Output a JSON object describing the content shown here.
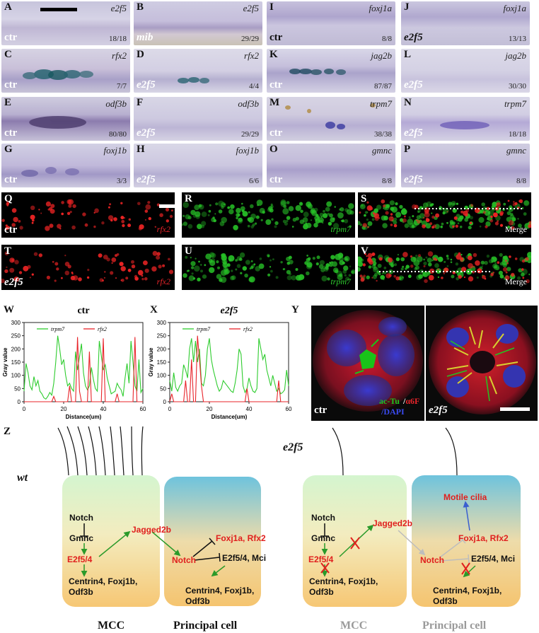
{
  "figure": {
    "panel_letters": {
      "A": "A",
      "B": "B",
      "C": "C",
      "D": "D",
      "E": "E",
      "F": "F",
      "G": "G",
      "H": "H",
      "I": "I",
      "J": "J",
      "K": "K",
      "L": "L",
      "M": "M",
      "N": "N",
      "O": "O",
      "P": "P",
      "Q": "Q",
      "R": "R",
      "S": "S",
      "T": "T",
      "U": "U",
      "V": "V",
      "W": "W",
      "X": "X",
      "Y": "Y",
      "Z": "Z"
    },
    "ish": {
      "A": {
        "gene": "e2f5",
        "cond": "ctr",
        "ratio": "18/18"
      },
      "B": {
        "gene": "e2f5",
        "cond": "mib",
        "ratio": "29/29"
      },
      "C": {
        "gene": "rfx2",
        "cond": "ctr",
        "ratio": "7/7"
      },
      "D": {
        "gene": "rfx2",
        "cond": "e2f5",
        "ratio": "4/4"
      },
      "E": {
        "gene": "odf3b",
        "cond": "ctr",
        "ratio": "80/80"
      },
      "F": {
        "gene": "odf3b",
        "cond": "e2f5",
        "ratio": "29/29"
      },
      "G": {
        "gene": "foxj1b",
        "cond": "ctr",
        "ratio": "3/3"
      },
      "H": {
        "gene": "foxj1b",
        "cond": "e2f5",
        "ratio": "6/6"
      },
      "I": {
        "gene": "foxj1a",
        "cond": "ctr",
        "ratio": "8/8"
      },
      "J": {
        "gene": "foxj1a",
        "cond": "e2f5",
        "ratio": "13/13"
      },
      "K": {
        "gene": "jag2b",
        "cond": "ctr",
        "ratio": "87/87"
      },
      "L": {
        "gene": "jag2b",
        "cond": "e2f5",
        "ratio": "30/30"
      },
      "M": {
        "gene": "trpm7",
        "cond": "ctr",
        "ratio": "38/38"
      },
      "N": {
        "gene": "trpm7",
        "cond": "e2f5",
        "ratio": "18/18"
      },
      "O": {
        "gene": "gmnc",
        "cond": "ctr",
        "ratio": "8/8"
      },
      "P": {
        "gene": "gmnc",
        "cond": "e2f5",
        "ratio": "8/8"
      }
    },
    "fluor": {
      "Q": {
        "cond": "ctr",
        "label": "rfx2"
      },
      "R": {
        "label": "trpm7"
      },
      "S": {
        "label": "Merge"
      },
      "T": {
        "cond": "e2f5",
        "label": "rfx2"
      },
      "U": {
        "label": "trpm7"
      },
      "V": {
        "label": "Merge"
      }
    },
    "y_panel": {
      "left_cond": "ctr",
      "right_cond": "e2f5",
      "stain1": "ac-Tu",
      "sep": "/",
      "stain2": "α6F",
      "stain3": "/DAPI"
    },
    "colors": {
      "trpm7": "#2ecc2e",
      "rfx2": "#e8242a",
      "red_text": "#e0201e",
      "green_arrow": "#2a9a2a",
      "blue_arrow": "#3a5fd0",
      "gray_text": "#9a9a9a"
    }
  },
  "chart_data": [
    {
      "type": "line",
      "title": "ctr",
      "xlabel": "Distance(um)",
      "ylabel": "Gray value",
      "xlim": [
        0,
        60
      ],
      "ylim": [
        0,
        300
      ],
      "xticks": [
        0,
        20,
        40,
        60
      ],
      "yticks": [
        0,
        50,
        100,
        150,
        200,
        250,
        300
      ],
      "legend": "top",
      "grid": false,
      "series": [
        {
          "name": "trpm7",
          "color": "#2ecc2e",
          "x": [
            0,
            1,
            2,
            3,
            4,
            5,
            6,
            7,
            8,
            9,
            10,
            11,
            12,
            13,
            14,
            15,
            16,
            17,
            18,
            19,
            20,
            21,
            22,
            23,
            24,
            25,
            26,
            27,
            28,
            29,
            30,
            31,
            32,
            33,
            34,
            35,
            36,
            37,
            38,
            39,
            40,
            41,
            42,
            43,
            44,
            45,
            46,
            47,
            48,
            49,
            50,
            51,
            52,
            53,
            54,
            55,
            56,
            57,
            58,
            59,
            60
          ],
          "y": [
            40,
            145,
            110,
            60,
            45,
            95,
            60,
            80,
            40,
            30,
            15,
            10,
            20,
            35,
            25,
            70,
            150,
            250,
            200,
            140,
            160,
            100,
            60,
            70,
            50,
            40,
            190,
            120,
            170,
            220,
            110,
            60,
            45,
            60,
            130,
            85,
            50,
            40,
            230,
            175,
            120,
            140,
            90,
            60,
            30,
            35,
            40,
            70,
            55,
            45,
            20,
            90,
            145,
            70,
            230,
            150,
            60,
            40,
            160,
            35,
            50
          ]
        },
        {
          "name": "rfx2",
          "color": "#e8242a",
          "x": [
            0,
            1,
            2,
            3,
            4,
            5,
            6,
            7,
            8,
            9,
            10,
            11,
            12,
            13,
            14,
            15,
            16,
            17,
            18,
            19,
            20,
            21,
            22,
            23,
            24,
            25,
            26,
            27,
            28,
            29,
            30,
            31,
            32,
            33,
            34,
            35,
            36,
            37,
            38,
            39,
            40,
            41,
            42,
            43,
            44,
            45,
            46,
            47,
            48,
            49,
            50,
            51,
            52,
            53,
            54,
            55,
            56,
            57,
            58,
            59,
            60
          ],
          "y": [
            0,
            0,
            0,
            0,
            0,
            0,
            0,
            0,
            0,
            0,
            0,
            0,
            0,
            0,
            0,
            20,
            0,
            0,
            0,
            0,
            0,
            0,
            0,
            60,
            0,
            0,
            0,
            245,
            40,
            0,
            0,
            0,
            0,
            190,
            0,
            0,
            0,
            0,
            0,
            0,
            240,
            0,
            0,
            0,
            0,
            0,
            0,
            30,
            0,
            0,
            0,
            0,
            0,
            0,
            0,
            0,
            245,
            0,
            0,
            0,
            0
          ]
        }
      ]
    },
    {
      "type": "line",
      "title": "e2f5",
      "xlabel": "Distance(um)",
      "ylabel": "Gray value",
      "xlim": [
        0,
        60
      ],
      "ylim": [
        0,
        300
      ],
      "xticks": [
        0,
        20,
        40,
        60
      ],
      "yticks": [
        0,
        50,
        100,
        150,
        200,
        250,
        300
      ],
      "legend": "top",
      "grid": false,
      "series": [
        {
          "name": "trpm7",
          "color": "#2ecc2e",
          "x": [
            0,
            1,
            2,
            3,
            4,
            5,
            6,
            7,
            8,
            9,
            10,
            11,
            12,
            13,
            14,
            15,
            16,
            17,
            18,
            19,
            20,
            21,
            22,
            23,
            24,
            25,
            26,
            27,
            28,
            29,
            30,
            31,
            32,
            33,
            34,
            35,
            36,
            37,
            38,
            39,
            40,
            41,
            42,
            43,
            44,
            45,
            46,
            47,
            48,
            49,
            50,
            51,
            52,
            53,
            54,
            55,
            56,
            57,
            58,
            59,
            60
          ],
          "y": [
            80,
            40,
            110,
            55,
            40,
            60,
            70,
            140,
            120,
            90,
            200,
            240,
            150,
            230,
            150,
            200,
            70,
            60,
            100,
            200,
            240,
            160,
            120,
            90,
            60,
            40,
            50,
            80,
            70,
            60,
            50,
            40,
            35,
            70,
            120,
            200,
            180,
            60,
            35,
            50,
            90,
            60,
            40,
            35,
            50,
            240,
            200,
            160,
            180,
            120,
            90,
            60,
            100,
            70,
            40,
            50,
            30,
            35,
            45,
            120,
            60
          ]
        },
        {
          "name": "rfx2",
          "color": "#e8242a",
          "x": [
            0,
            1,
            2,
            3,
            4,
            5,
            6,
            7,
            8,
            9,
            10,
            11,
            12,
            13,
            14,
            15,
            16,
            17,
            18,
            19,
            20,
            21,
            22,
            23,
            24,
            25,
            26,
            27,
            28,
            29,
            30,
            31,
            32,
            33,
            34,
            35,
            36,
            37,
            38,
            39,
            40,
            41,
            42,
            43,
            44,
            45,
            46,
            47,
            48,
            49,
            50,
            51,
            52,
            53,
            54,
            55,
            56,
            57,
            58,
            59,
            60
          ],
          "y": [
            0,
            30,
            0,
            0,
            0,
            0,
            0,
            0,
            80,
            0,
            0,
            160,
            0,
            0,
            250,
            160,
            60,
            0,
            0,
            0,
            0,
            0,
            0,
            0,
            0,
            0,
            0,
            0,
            0,
            0,
            0,
            0,
            0,
            0,
            0,
            0,
            0,
            0,
            0,
            50,
            0,
            0,
            0,
            0,
            0,
            0,
            0,
            0,
            0,
            0,
            0,
            0,
            0,
            0,
            0,
            80,
            0,
            0,
            0,
            0,
            0
          ]
        }
      ]
    }
  ],
  "diagram": {
    "left": {
      "genotype": "wt",
      "mcc_nodes": {
        "notch": "Notch",
        "gmnc": "Gmnc",
        "e2f5": "E2f5/4",
        "targets1": "Centrin4, Foxj1b,",
        "targets2": "Odf3b",
        "jagged": "Jagged2b"
      },
      "pc_nodes": {
        "notch": "Notch",
        "foxj": "Foxj1a, Rfx2",
        "e2f": "E2f5/4, Mci",
        "targets1": "Centrin4, Foxj1b,",
        "targets2": "Odf3b"
      },
      "mcc_caption": "MCC",
      "pc_caption": "Principal cell"
    },
    "right": {
      "genotype": "e2f5",
      "mcc_nodes": {
        "notch": "Notch",
        "gmnc": "Gmnc",
        "e2f5": "E2f5/4",
        "targets1": "Centrin4, Foxj1b,",
        "targets2": "Odf3b",
        "jagged": "Jagged2b"
      },
      "pc_nodes": {
        "motile": "Motile cilia",
        "notch": "Notch",
        "foxj": "Foxj1a, Rfx2",
        "e2f": "E2f5/4, Mci",
        "targets1": "Centrin4, Foxj1b,",
        "targets2": "Odf3b"
      },
      "mcc_caption": "MCC",
      "pc_caption": "Principal cell"
    }
  }
}
